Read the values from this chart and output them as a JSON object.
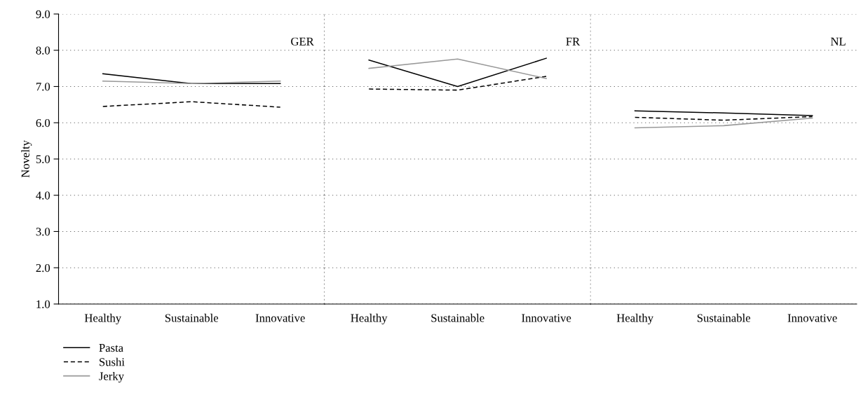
{
  "chart_data": [
    {
      "type": "line",
      "categories": [
        "Healthy",
        "Sustainable",
        "Innovative"
      ],
      "ylabel": "Novelty",
      "annotations": [
        "GER"
      ],
      "ylim": [
        1.0,
        9.0
      ],
      "yticks": [
        {
          "value": 1,
          "label": "1.0"
        },
        {
          "value": 2,
          "label": "2.0"
        },
        {
          "value": 3,
          "label": "3.0"
        },
        {
          "value": 4,
          "label": "4.0"
        },
        {
          "value": 5,
          "label": "5.0"
        },
        {
          "value": 6,
          "label": "6.0"
        },
        {
          "value": 7,
          "label": "7.0"
        },
        {
          "value": 8,
          "label": "8.0"
        },
        {
          "value": 9,
          "label": "9.0"
        }
      ],
      "grid": "y",
      "legend": "bottom left",
      "series": [
        {
          "name": "Pasta",
          "color": "#000000",
          "line_style": "solid",
          "values": [
            7.35,
            7.08,
            7.08
          ]
        },
        {
          "name": "Sushi",
          "color": "#000000",
          "line_style": "dashed",
          "values": [
            6.45,
            6.58,
            6.43
          ]
        },
        {
          "name": "Jerky",
          "color": "#999999",
          "line_style": "solid",
          "values": [
            7.15,
            7.08,
            7.15
          ]
        }
      ]
    },
    {
      "type": "line",
      "categories": [
        "Healthy",
        "Sustainable",
        "Innovative"
      ],
      "annotations": [
        "FR"
      ],
      "ylim": [
        1.0,
        9.0
      ],
      "yticks": [
        1,
        2,
        3,
        4,
        5,
        6,
        7,
        8,
        9
      ],
      "grid": "y",
      "tick_labels": "x",
      "series": [
        {
          "color": "#000000",
          "line_style": "solid",
          "values": [
            7.73,
            7.0,
            7.78
          ]
        },
        {
          "color": "#000000",
          "line_style": "dashed",
          "values": [
            6.93,
            6.9,
            7.28
          ]
        },
        {
          "color": "#999999",
          "line_style": "solid",
          "values": [
            7.5,
            7.76,
            7.22
          ]
        }
      ]
    },
    {
      "type": "line",
      "categories": [
        "Healthy",
        "Sustainable",
        "Innovative"
      ],
      "annotations": [
        "NL"
      ],
      "ylim": [
        1.0,
        9.0
      ],
      "yticks": [
        1,
        2,
        3,
        4,
        5,
        6,
        7,
        8,
        9
      ],
      "grid": "y",
      "tick_labels": "x",
      "series": [
        {
          "color": "#000000",
          "line_style": "solid",
          "values": [
            6.33,
            6.27,
            6.2
          ]
        },
        {
          "color": "#000000",
          "line_style": "dashed",
          "values": [
            6.15,
            6.07,
            6.17
          ]
        },
        {
          "color": "#999999",
          "line_style": "solid",
          "values": [
            5.86,
            5.92,
            6.13
          ]
        }
      ]
    }
  ]
}
